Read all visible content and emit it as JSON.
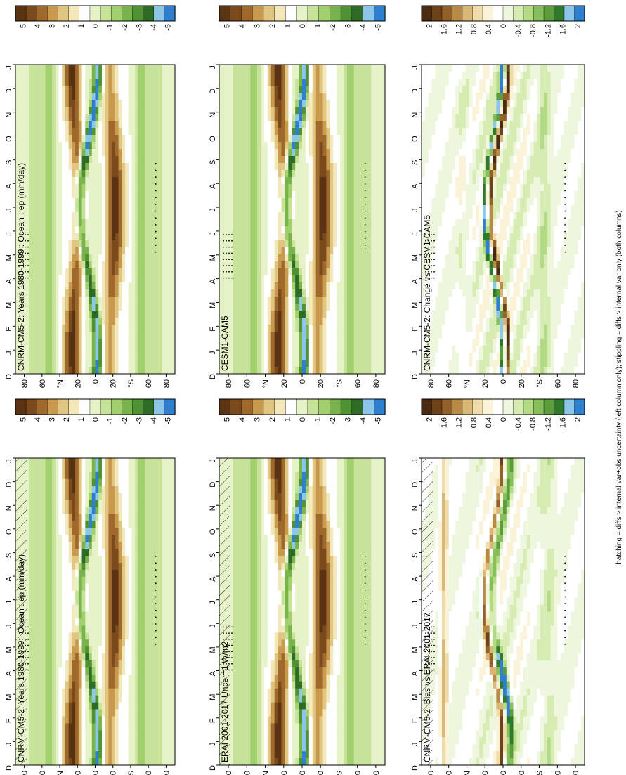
{
  "figure": {
    "footnote": "hatching = diffs > internal var+obs uncertainty (left column only); stippling = diffs > internal var only (both columns)"
  },
  "colors": {
    "brown_dark": "#5a3412",
    "tan": "#d8b46a",
    "cream": "#f1e6b8",
    "white": "#ffffff",
    "light_green": "#cfe8a0",
    "green": "#6fa84a",
    "dark_green": "#2e6b24",
    "light_blue": "#8cc7ea",
    "blue": "#2f7fcf"
  },
  "chart_data": [
    {
      "id": "left-top",
      "type": "heatmap",
      "title": "CNRM-CM5-2: Years 1980-1999 : Ocean : ep (mm/day)",
      "x_months": [
        "D",
        "J",
        "F",
        "M",
        "A",
        "M",
        "J",
        "J",
        "A",
        "S",
        "O",
        "N",
        "D",
        "J"
      ],
      "y_lat_labels": [
        "80",
        "60",
        "°N",
        "20",
        "0",
        "20",
        "°S",
        "60",
        "80"
      ],
      "colorbar": {
        "labels": [
          "5",
          "4",
          "3",
          "2",
          "1",
          "0",
          "-1",
          "-2",
          "-3",
          "-4",
          "-5"
        ],
        "range": [
          -5.5,
          5.5
        ]
      },
      "style": "mean",
      "hatching": true,
      "stippling": true
    },
    {
      "id": "left-middle",
      "type": "heatmap",
      "title": "ERAI 2001-2017 Uncer=1 W/m2",
      "x_months": [
        "D",
        "J",
        "F",
        "M",
        "A",
        "M",
        "J",
        "J",
        "A",
        "S",
        "O",
        "N",
        "D",
        "J"
      ],
      "y_lat_labels": [
        "80",
        "60",
        "°N",
        "20",
        "0",
        "20",
        "°S",
        "60",
        "80"
      ],
      "colorbar": {
        "labels": [
          "5",
          "4",
          "3",
          "2",
          "1",
          "0",
          "-1",
          "-2",
          "-3",
          "-4",
          "-5"
        ],
        "range": [
          -5.5,
          5.5
        ]
      },
      "style": "mean",
      "hatching": true,
      "stippling": true
    },
    {
      "id": "left-bottom",
      "type": "heatmap",
      "title": "CNRM-CM5-2: Bias vs ERAI 2001-2017",
      "x_months": [
        "D",
        "J",
        "F",
        "M",
        "A",
        "M",
        "J",
        "J",
        "A",
        "S",
        "O",
        "N",
        "D",
        "J"
      ],
      "y_lat_labels": [
        "80",
        "60",
        "°N",
        "20",
        "0",
        "20",
        "°S",
        "60",
        "80"
      ],
      "colorbar": {
        "labels": [
          "2",
          "1.6",
          "1.2",
          "0.8",
          "0.4",
          "0",
          "-0.4",
          "-0.8",
          "-1.2",
          "-1.6",
          "-2"
        ],
        "range": [
          -2.2,
          2.2
        ]
      },
      "style": "bias",
      "hatching": true,
      "stippling": true
    },
    {
      "id": "right-top",
      "type": "heatmap",
      "title": "CNRM-CM5-2: Years 1980-1999 : Ocean : ep (mm/day)",
      "x_months": [
        "D",
        "J",
        "F",
        "M",
        "A",
        "M",
        "J",
        "J",
        "A",
        "S",
        "O",
        "N",
        "D",
        "J"
      ],
      "y_lat_labels": [
        "80",
        "60",
        "°N",
        "20",
        "0",
        "20",
        "°S",
        "60",
        "80"
      ],
      "colorbar": {
        "labels": [
          "5",
          "4",
          "3",
          "2",
          "1",
          "0",
          "-1",
          "-2",
          "-3",
          "-4",
          "-5"
        ],
        "range": [
          -5.5,
          5.5
        ]
      },
      "style": "mean",
      "hatching": false,
      "stippling": true
    },
    {
      "id": "right-middle",
      "type": "heatmap",
      "title": "CESM1-CAM5",
      "x_months": [
        "D",
        "J",
        "F",
        "M",
        "A",
        "M",
        "J",
        "J",
        "A",
        "S",
        "O",
        "N",
        "D",
        "J"
      ],
      "y_lat_labels": [
        "80",
        "60",
        "°N",
        "20",
        "0",
        "20",
        "°S",
        "60",
        "80"
      ],
      "colorbar": {
        "labels": [
          "5",
          "4",
          "3",
          "2",
          "1",
          "0",
          "-1",
          "-2",
          "-3",
          "-4",
          "-5"
        ],
        "range": [
          -5.5,
          5.5
        ]
      },
      "style": "mean",
      "hatching": false,
      "stippling": true
    },
    {
      "id": "right-bottom",
      "type": "heatmap",
      "title": "CNRM-CM5-2: Change vs CESM1-CAM5",
      "x_months": [
        "D",
        "J",
        "F",
        "M",
        "A",
        "M",
        "J",
        "J",
        "A",
        "S",
        "O",
        "N",
        "D",
        "J"
      ],
      "y_lat_labels": [
        "80",
        "60",
        "°N",
        "20",
        "0",
        "20",
        "°S",
        "60",
        "80"
      ],
      "colorbar": {
        "labels": [
          "2",
          "1.6",
          "1.2",
          "0.8",
          "0.4",
          "0",
          "-0.4",
          "-0.8",
          "-1.2",
          "-1.6",
          "-2"
        ],
        "range": [
          -2.2,
          2.2
        ]
      },
      "style": "change",
      "hatching": false,
      "stippling": true
    }
  ]
}
